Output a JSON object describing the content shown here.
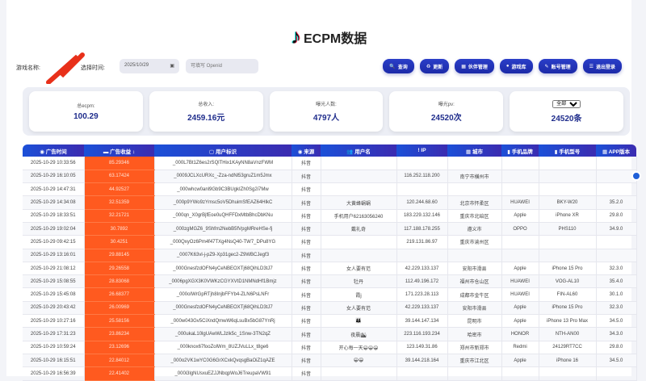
{
  "header": {
    "title": "ECPM数据"
  },
  "filters": {
    "game_label": "游戏名称:",
    "date_label": "选择时间:",
    "date_value": "2025/10/29",
    "openid_placeholder": "可填写 Openid"
  },
  "buttons": [
    {
      "icon": "search-icon",
      "label": "查询"
    },
    {
      "icon": "refresh-icon",
      "label": "更新"
    },
    {
      "icon": "partner-icon",
      "label": "伙伴管理"
    },
    {
      "icon": "game-icon",
      "label": "游戏库"
    },
    {
      "icon": "key-icon",
      "label": "账号管理"
    },
    {
      "icon": "logout-icon",
      "label": "退出登录"
    }
  ],
  "stats": [
    {
      "label": "总ecpm:",
      "value": "100.29"
    },
    {
      "label": "总收入:",
      "value": "2459.16元"
    },
    {
      "label": "曝光人数:",
      "value": "4797人"
    },
    {
      "label": "曝光pv:",
      "value": "24520次"
    },
    {
      "select": "全部",
      "value": "24520条"
    }
  ],
  "table": {
    "columns": [
      "广告时间",
      "广告收益",
      "用户标识",
      "来源",
      "用户名",
      "IP",
      "城市",
      "手机品牌",
      "手机型号",
      "APP版本"
    ],
    "rows": [
      [
        "2025-10-29 10:33:56",
        "85.29346",
        "_000L7Bt1Z6es2rSQlTHix1KAyNN8aVnzFWM",
        "抖音",
        "",
        "",
        "",
        "",
        "",
        ""
      ],
      [
        "2025-10-29 16:10:05",
        "63.17424",
        "_0009JCLXcURXc_-Zza-ndNl53gruZ1m5Jmx",
        "抖音",
        "",
        "116.252.118.200",
        "南宁市横州市",
        "",
        "",
        ""
      ],
      [
        "2025-10-29 14:47:31",
        "44.92527",
        "_000whcw0anl9Gb9C3BUgkIZh0Sg2i7Mw",
        "抖音",
        "",
        "",
        "",
        "",
        "",
        ""
      ],
      [
        "2025-10-29 14:34:08",
        "32.51359",
        "_000p9YWo9zYmsc5oV5DhuimSfEAZ64HlkC",
        "抖音",
        "大黄蜂蜗蜗",
        "120.244.68.60",
        "北京市怀柔区",
        "HUAWEI",
        "BKY-W20",
        "35.2.0"
      ],
      [
        "2025-10-29 18:33:51",
        "32.21721",
        "_000qn_X0grBjfEoe0uQHFFDxMtbBhcDbKNu",
        "抖音",
        "手机用户62163056240",
        "183.229.132.146",
        "重庆市北碚区",
        "Apple",
        "iPhone XR",
        "29.8.0"
      ],
      [
        "2025-10-29 19:02:04",
        "30.7892",
        "_000zgMGZ6_9Shfm2NebB5fVpgMRreHSe-fj",
        "抖音",
        "戴礼奇",
        "117.188.178.255",
        "遵义市",
        "OPPO",
        "PHS110",
        "34.9.0"
      ],
      [
        "2025-10-29 09:42:15",
        "30.4251",
        "_000QxyOz6Pm4f47TXg4NsQ40-TW7_DPu8YG",
        "抖音",
        "",
        "219.131.86.97",
        "重庆市渝州区",
        "",
        "",
        ""
      ],
      [
        "2025-10-29 13:16:01",
        "29.88145",
        "_0007K63vl-j-pZ9-Xp31gec2-Z9WBCJegf3",
        "抖音",
        "",
        "",
        "",
        "",
        "",
        ""
      ],
      [
        "2025-10-29 21:08:12",
        "29.26558",
        "_000GnesfzdOFN4yCeNBEOXTj68QihLD3tJ7",
        "抖音",
        "女人要有范",
        "42.229.133.137",
        "安阳市滑县",
        "Apple",
        "iPhone 15 Pro",
        "32.3.0"
      ],
      [
        "2025-10-29 15:08:55",
        "28.83068",
        "_0006pgXGX3K0VWKzCGYXVtD1NMNdHf1Bmjz",
        "抖音",
        "牡丹",
        "112.49.196.172",
        "福州市仓山区",
        "HUAWEI",
        "VOG-AL10",
        "35.4.0"
      ],
      [
        "2025-10-29 15:45:08",
        "26.68377",
        "_000oIWrGpRTjh8InjbFFYb4-ZLN6PsLNFr",
        "抖音",
        "霞j",
        "171.223.28.113",
        "成都市金牛区",
        "HUAWEI",
        "FIN-AL60",
        "30.1.0"
      ],
      [
        "2025-10-29 20:43:42",
        "26.00969",
        "_000GnesfzdOFN4yCeNBEOXTj68QihLD3tJ7",
        "抖音",
        "女人要有范",
        "42.229.133.137",
        "安阳市滑县",
        "Apple",
        "iPhone 15 Pro",
        "32.3.0"
      ],
      [
        "2025-10-29 10:27:16",
        "25.58156",
        "_000w043Gv5CiXndQmwW6qLsuBx5bG87YnRj",
        "抖音",
        "👪",
        "39.144.147.134",
        "昆明市",
        "Apple",
        "iPhone 13 Pro Max",
        "34.5.0"
      ],
      [
        "2025-10-29 17:31:23",
        "23.86234",
        "_000ukaL10lgUAwWLJzlk5c_1Snw-3TN2qZ",
        "抖音",
        "夜晨🏙",
        "223.116.193.234",
        "哈密市",
        "HONOR",
        "NTH-AN00",
        "34.3.0"
      ],
      [
        "2025-10-29 10:59:24",
        "23.12696",
        "_000knox67fooZolWm_8UZJVuLLx_t8ge6",
        "抖音",
        "开心每一天😀😀😀",
        "123.149.31.86",
        "郑州市新郑市",
        "Redmi",
        "24129RT7CC",
        "29.8.0"
      ],
      [
        "2025-10-29 16:15:51",
        "22.84012",
        "_000o2VK1wYC0G6GrXCxkQvqsgBaOiZ1qAZE",
        "抖音",
        "😀😀",
        "39.144.218.164",
        "重庆市江北区",
        "Apple",
        "iPhone 16",
        "34.5.0"
      ],
      [
        "2025-10-29 16:56:39",
        "22.41402",
        "_000i3lgNUsxuEZJJNbqpWoJ6TreupaVW91",
        "抖音",
        "",
        "",
        "",
        "",
        "",
        ""
      ]
    ]
  },
  "colors": {
    "accent": "#1f2aa8",
    "revenue_cell": "#ff5a1f",
    "header_gradient_start": "#1b50d8",
    "header_gradient_end": "#3b2bb0"
  }
}
